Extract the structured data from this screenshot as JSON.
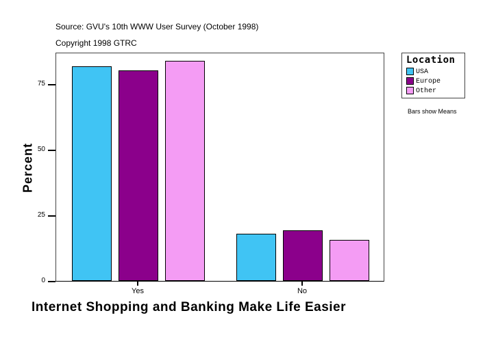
{
  "header": {
    "source": "Source: GVU's 10th WWW User Survey (October 1998)",
    "copyright": "Copyright 1998 GTRC"
  },
  "legend": {
    "title": "Location",
    "items": [
      {
        "label": "USA",
        "color": "#40C4F4"
      },
      {
        "label": "Europe",
        "color": "#8B008B"
      },
      {
        "label": "Other",
        "color": "#F49CF4"
      }
    ],
    "note": "Bars show Means"
  },
  "axes": {
    "ylabel": "Percent",
    "xlabel": "Internet Shopping and Banking Make Life Easier",
    "yticks": [
      "0",
      "25",
      "50",
      "75"
    ],
    "xticks": [
      "Yes",
      "No"
    ]
  },
  "chart_data": {
    "type": "bar",
    "title": "",
    "categories": [
      "Yes",
      "No"
    ],
    "series": [
      {
        "name": "USA",
        "color": "#40C4F4",
        "values": [
          81.8,
          17.9
        ]
      },
      {
        "name": "Europe",
        "color": "#8B008B",
        "values": [
          80.2,
          19.2
        ]
      },
      {
        "name": "Other",
        "color": "#F49CF4",
        "values": [
          83.9,
          15.5
        ]
      }
    ],
    "xlabel": "Internet Shopping and Banking Make Life Easier",
    "ylabel": "Percent",
    "ylim": [
      0,
      87
    ],
    "yticks": [
      0,
      25,
      50,
      75
    ],
    "grid": false,
    "legend_position": "right",
    "legend_title": "Location",
    "annotations": [
      "Source: GVU's 10th WWW User Survey (October 1998)",
      "Copyright 1998 GTRC",
      "Bars show Means"
    ]
  }
}
